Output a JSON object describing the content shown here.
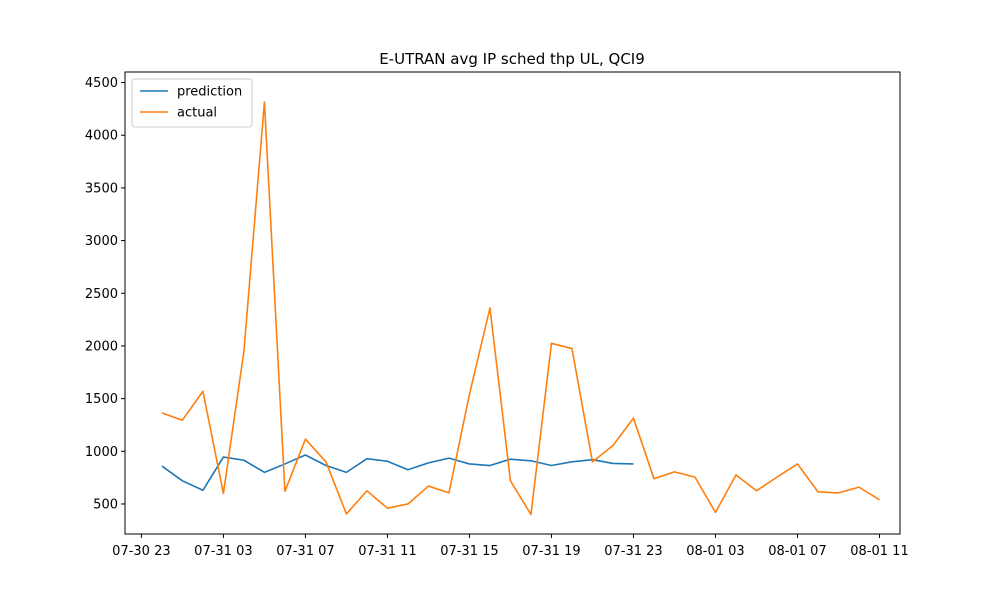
{
  "chart_data": {
    "type": "line",
    "title": "E-UTRAN avg IP sched thp UL, QCI9",
    "xlabel": "",
    "ylabel": "",
    "x_unit": "hour",
    "x_start": "07-31 00",
    "xlim": [
      "07-30 22.2",
      "08-01 12.0"
    ],
    "ylim": [
      215,
      4600
    ],
    "y_ticks": [
      500,
      1000,
      1500,
      2000,
      2500,
      3000,
      3500,
      4000,
      4500
    ],
    "x_ticks": [
      "07-30 23",
      "07-31 03",
      "07-31 07",
      "07-31 11",
      "07-31 15",
      "07-31 19",
      "07-31 23",
      "08-01 03",
      "08-01 07",
      "08-01 11"
    ],
    "grid": false,
    "legend": {
      "placement": "top-left"
    },
    "series": [
      {
        "name": "prediction",
        "color": "#1f77b4",
        "points": [
          [
            "07-31 00",
            860
          ],
          [
            "07-31 01",
            720
          ],
          [
            "07-31 02",
            630
          ],
          [
            "07-31 03",
            945
          ],
          [
            "07-31 04",
            915
          ],
          [
            "07-31 05",
            800
          ],
          [
            "07-31 06",
            880
          ],
          [
            "07-31 07",
            965
          ],
          [
            "07-31 08",
            865
          ],
          [
            "07-31 09",
            800
          ],
          [
            "07-31 10",
            930
          ],
          [
            "07-31 11",
            905
          ],
          [
            "07-31 12",
            825
          ],
          [
            "07-31 13",
            890
          ],
          [
            "07-31 14",
            935
          ],
          [
            "07-31 15",
            880
          ],
          [
            "07-31 16",
            865
          ],
          [
            "07-31 17",
            925
          ],
          [
            "07-31 18",
            910
          ],
          [
            "07-31 19",
            865
          ],
          [
            "07-31 20",
            900
          ],
          [
            "07-31 21",
            920
          ],
          [
            "07-31 22",
            885
          ],
          [
            "07-31 23",
            880
          ]
        ]
      },
      {
        "name": "actual",
        "color": "#ff7f0e",
        "points": [
          [
            "07-31 00",
            1365
          ],
          [
            "07-31 01",
            1295
          ],
          [
            "07-31 02",
            1570
          ],
          [
            "07-31 03",
            600
          ],
          [
            "07-31 04",
            1950
          ],
          [
            "07-31 05",
            4315
          ],
          [
            "07-31 06",
            620
          ],
          [
            "07-31 07",
            1115
          ],
          [
            "07-31 08",
            900
          ],
          [
            "07-31 09",
            405
          ],
          [
            "07-31 10",
            625
          ],
          [
            "07-31 11",
            460
          ],
          [
            "07-31 12",
            500
          ],
          [
            "07-31 13",
            670
          ],
          [
            "07-31 14",
            605
          ],
          [
            "07-31 15",
            1540
          ],
          [
            "07-31 16",
            2360
          ],
          [
            "07-31 17",
            720
          ],
          [
            "07-31 18",
            400
          ],
          [
            "07-31 19",
            2025
          ],
          [
            "07-31 20",
            1975
          ],
          [
            "07-31 21",
            900
          ],
          [
            "07-31 22",
            1055
          ],
          [
            "07-31 23",
            1315
          ],
          [
            "08-01 00",
            740
          ],
          [
            "08-01 01",
            805
          ],
          [
            "08-01 02",
            755
          ],
          [
            "08-01 03",
            420
          ],
          [
            "08-01 04",
            775
          ],
          [
            "08-01 05",
            625
          ],
          [
            "08-01 06",
            755
          ],
          [
            "08-01 07",
            880
          ],
          [
            "08-01 08",
            615
          ],
          [
            "08-01 09",
            605
          ],
          [
            "08-01 10",
            660
          ],
          [
            "08-01 11",
            540
          ]
        ]
      }
    ]
  }
}
